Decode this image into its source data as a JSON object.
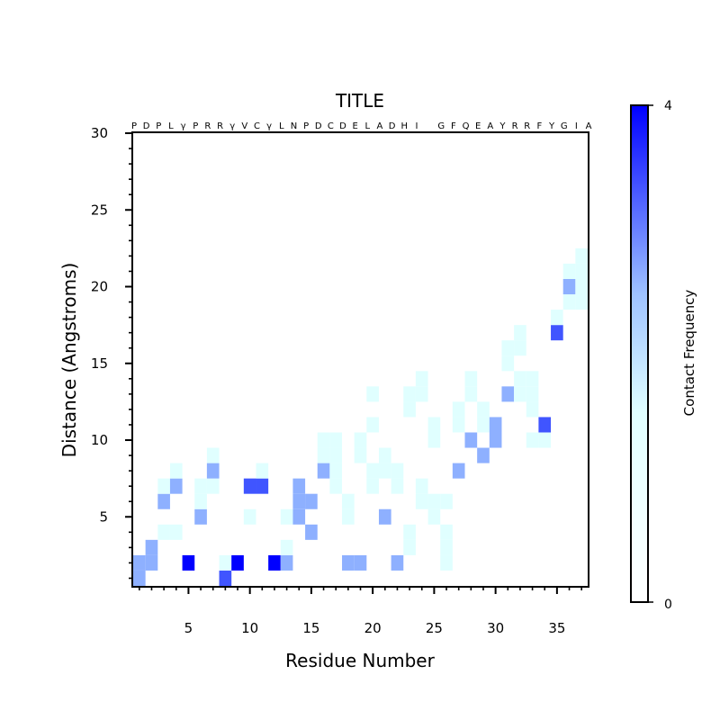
{
  "chart_data": {
    "type": "heatmap",
    "title": "TITLE",
    "xlabel": "Residue Number",
    "ylabel": "Distance (Angstroms)",
    "colorbar_label": "Contact Frequency",
    "xlim": [
      0.5,
      37.5
    ],
    "ylim": [
      0.5,
      30
    ],
    "x_ticks": [
      5,
      10,
      15,
      20,
      25,
      30,
      35
    ],
    "x_tick_labels": [
      "5",
      "10",
      "15",
      "20",
      "25",
      "30",
      "35"
    ],
    "y_ticks": [
      5,
      10,
      15,
      20,
      25,
      30
    ],
    "y_tick_labels": [
      "5",
      "10",
      "15",
      "20",
      "25",
      "30"
    ],
    "colorbar_range": [
      0,
      4
    ],
    "colorbar_tick_labels": [
      "0",
      "4"
    ],
    "colors": {
      "low": "#ffffff",
      "mid": "#e0ffff",
      "high": "#0000ff"
    },
    "sequence": [
      "P",
      "D",
      "P",
      "L",
      "γ",
      "P",
      "R",
      "R",
      "γ",
      "V",
      "C",
      "γ",
      "L",
      "N",
      "P",
      "D",
      "C",
      "D",
      "E",
      "L",
      "A",
      "D",
      "H",
      "I",
      "",
      "G",
      "F",
      "Q",
      "E",
      "A",
      "Y",
      "R",
      "R",
      "F",
      "Y",
      "G",
      "I",
      "A"
    ],
    "cells": [
      [
        1,
        1,
        2
      ],
      [
        1,
        2,
        2
      ],
      [
        2,
        2,
        2
      ],
      [
        2,
        3,
        2
      ],
      [
        3,
        4,
        1
      ],
      [
        3,
        6,
        2
      ],
      [
        3,
        7,
        1
      ],
      [
        4,
        4,
        1
      ],
      [
        4,
        7,
        2
      ],
      [
        4,
        8,
        1
      ],
      [
        5,
        2,
        4
      ],
      [
        6,
        5,
        2
      ],
      [
        6,
        6,
        1
      ],
      [
        6,
        7,
        1
      ],
      [
        7,
        7,
        1
      ],
      [
        7,
        8,
        2
      ],
      [
        7,
        9,
        1
      ],
      [
        8,
        1,
        3
      ],
      [
        8,
        2,
        1
      ],
      [
        9,
        2,
        4
      ],
      [
        10,
        5,
        1
      ],
      [
        10,
        7,
        3
      ],
      [
        11,
        7,
        3
      ],
      [
        11,
        8,
        1
      ],
      [
        12,
        2,
        4
      ],
      [
        13,
        2,
        2
      ],
      [
        13,
        3,
        1
      ],
      [
        13,
        5,
        1
      ],
      [
        14,
        5,
        2
      ],
      [
        14,
        6,
        2
      ],
      [
        14,
        7,
        2
      ],
      [
        15,
        4,
        2
      ],
      [
        15,
        6,
        2
      ],
      [
        16,
        8,
        2
      ],
      [
        16,
        9,
        1
      ],
      [
        16,
        10,
        1
      ],
      [
        17,
        7,
        1
      ],
      [
        17,
        8,
        1
      ],
      [
        17,
        9,
        1
      ],
      [
        17,
        10,
        1
      ],
      [
        18,
        2,
        2
      ],
      [
        18,
        5,
        1
      ],
      [
        18,
        6,
        1
      ],
      [
        19,
        2,
        2
      ],
      [
        19,
        9,
        1
      ],
      [
        19,
        10,
        1
      ],
      [
        20,
        7,
        1
      ],
      [
        20,
        8,
        1
      ],
      [
        20,
        11,
        1
      ],
      [
        20,
        13,
        1
      ],
      [
        21,
        5,
        2
      ],
      [
        21,
        8,
        1
      ],
      [
        21,
        9,
        1
      ],
      [
        22,
        2,
        2
      ],
      [
        22,
        7,
        1
      ],
      [
        22,
        8,
        1
      ],
      [
        23,
        3,
        1
      ],
      [
        23,
        4,
        1
      ],
      [
        23,
        12,
        1
      ],
      [
        23,
        13,
        1
      ],
      [
        24,
        6,
        1
      ],
      [
        24,
        7,
        1
      ],
      [
        24,
        13,
        1
      ],
      [
        24,
        14,
        1
      ],
      [
        25,
        5,
        1
      ],
      [
        25,
        6,
        1
      ],
      [
        25,
        10,
        1
      ],
      [
        25,
        11,
        1
      ],
      [
        26,
        2,
        1
      ],
      [
        26,
        3,
        1
      ],
      [
        26,
        4,
        1
      ],
      [
        26,
        6,
        1
      ],
      [
        27,
        8,
        2
      ],
      [
        27,
        11,
        1
      ],
      [
        27,
        12,
        1
      ],
      [
        28,
        10,
        2
      ],
      [
        28,
        13,
        1
      ],
      [
        28,
        14,
        1
      ],
      [
        29,
        9,
        2
      ],
      [
        29,
        11,
        1
      ],
      [
        29,
        12,
        1
      ],
      [
        30,
        10,
        2
      ],
      [
        30,
        11,
        2
      ],
      [
        31,
        13,
        2
      ],
      [
        31,
        15,
        1
      ],
      [
        31,
        16,
        1
      ],
      [
        32,
        13,
        1
      ],
      [
        32,
        14,
        1
      ],
      [
        32,
        16,
        1
      ],
      [
        32,
        17,
        1
      ],
      [
        33,
        13,
        1
      ],
      [
        33,
        14,
        1
      ],
      [
        33,
        12,
        1
      ],
      [
        33,
        10,
        1
      ],
      [
        34,
        10,
        1
      ],
      [
        34,
        11,
        3
      ],
      [
        35,
        17,
        3
      ],
      [
        35,
        18,
        1
      ],
      [
        36,
        19,
        1
      ],
      [
        36,
        20,
        2
      ],
      [
        36,
        21,
        1
      ],
      [
        37,
        19,
        1
      ],
      [
        37,
        20,
        1
      ],
      [
        37,
        21,
        1
      ],
      [
        37,
        22,
        1
      ]
    ]
  }
}
